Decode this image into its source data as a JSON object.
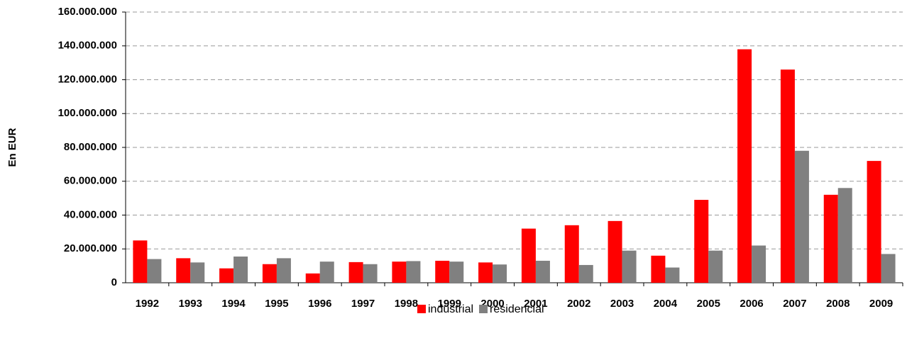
{
  "chart_data": {
    "type": "bar",
    "y_label": "En EUR",
    "categories": [
      "1992",
      "1993",
      "1994",
      "1995",
      "1996",
      "1997",
      "1998",
      "1999",
      "2000",
      "2001",
      "2002",
      "2003",
      "2004",
      "2005",
      "2006",
      "2007",
      "2008",
      "2009"
    ],
    "series": [
      {
        "name": "industrial",
        "color": "#ff0000",
        "values": [
          25000000,
          14500000,
          8500000,
          11000000,
          5500000,
          12200000,
          12500000,
          13000000,
          12000000,
          32000000,
          34000000,
          36500000,
          16000000,
          49000000,
          138000000,
          126000000,
          52000000,
          72000000
        ]
      },
      {
        "name": "residencial",
        "color": "#808080",
        "values": [
          14000000,
          12000000,
          15500000,
          14500000,
          12500000,
          11000000,
          12800000,
          12500000,
          10800000,
          13000000,
          10500000,
          19000000,
          9000000,
          19000000,
          22000000,
          78000000,
          56000000,
          17000000
        ]
      }
    ],
    "ylim": [
      0,
      160000000
    ],
    "yticks": [
      0,
      {
        "value": 20000000,
        "label": "20.000.000"
      },
      {
        "value": 40000000,
        "label": "40.000.000"
      },
      {
        "value": 60000000,
        "label": "60.000.000"
      },
      {
        "value": 80000000,
        "label": "80.000.000"
      },
      {
        "value": 100000000,
        "label": "100.000.000"
      },
      {
        "value": 120000000,
        "label": "120.000.000"
      },
      {
        "value": 140000000,
        "label": "140.000.000"
      },
      {
        "value": 160000000,
        "label": "160.000.000"
      }
    ],
    "grid": true,
    "legend": "bottom"
  }
}
